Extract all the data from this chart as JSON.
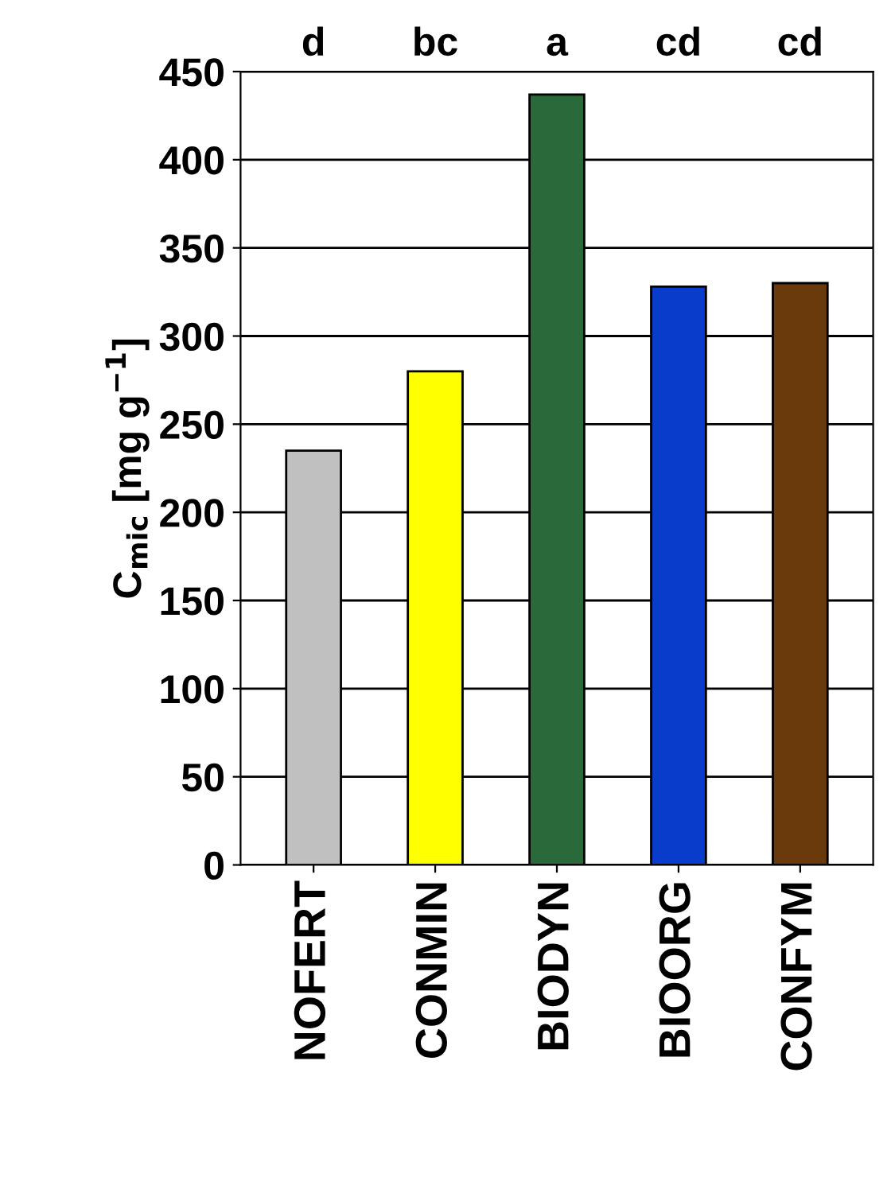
{
  "chart_data": {
    "type": "bar",
    "ylabel": "C$_{mic}$ [mg g$^{−1}$]",
    "categories": [
      "NOFERT",
      "CONMIN",
      "BIODYN",
      "BIOORG",
      "CONFYM"
    ],
    "values": [
      235,
      280,
      437,
      328,
      330
    ],
    "colors": [
      "#c0c0c0",
      "#ffff00",
      "#2a6a3a",
      "#0a3ccc",
      "#6b3a0c"
    ],
    "ylim": [
      0,
      450
    ],
    "yticks": [
      0,
      50,
      100,
      150,
      200,
      250,
      300,
      350,
      400,
      450
    ],
    "grid": "y",
    "annotations": [
      "d",
      "bc",
      "a",
      "cd",
      "cd"
    ]
  }
}
